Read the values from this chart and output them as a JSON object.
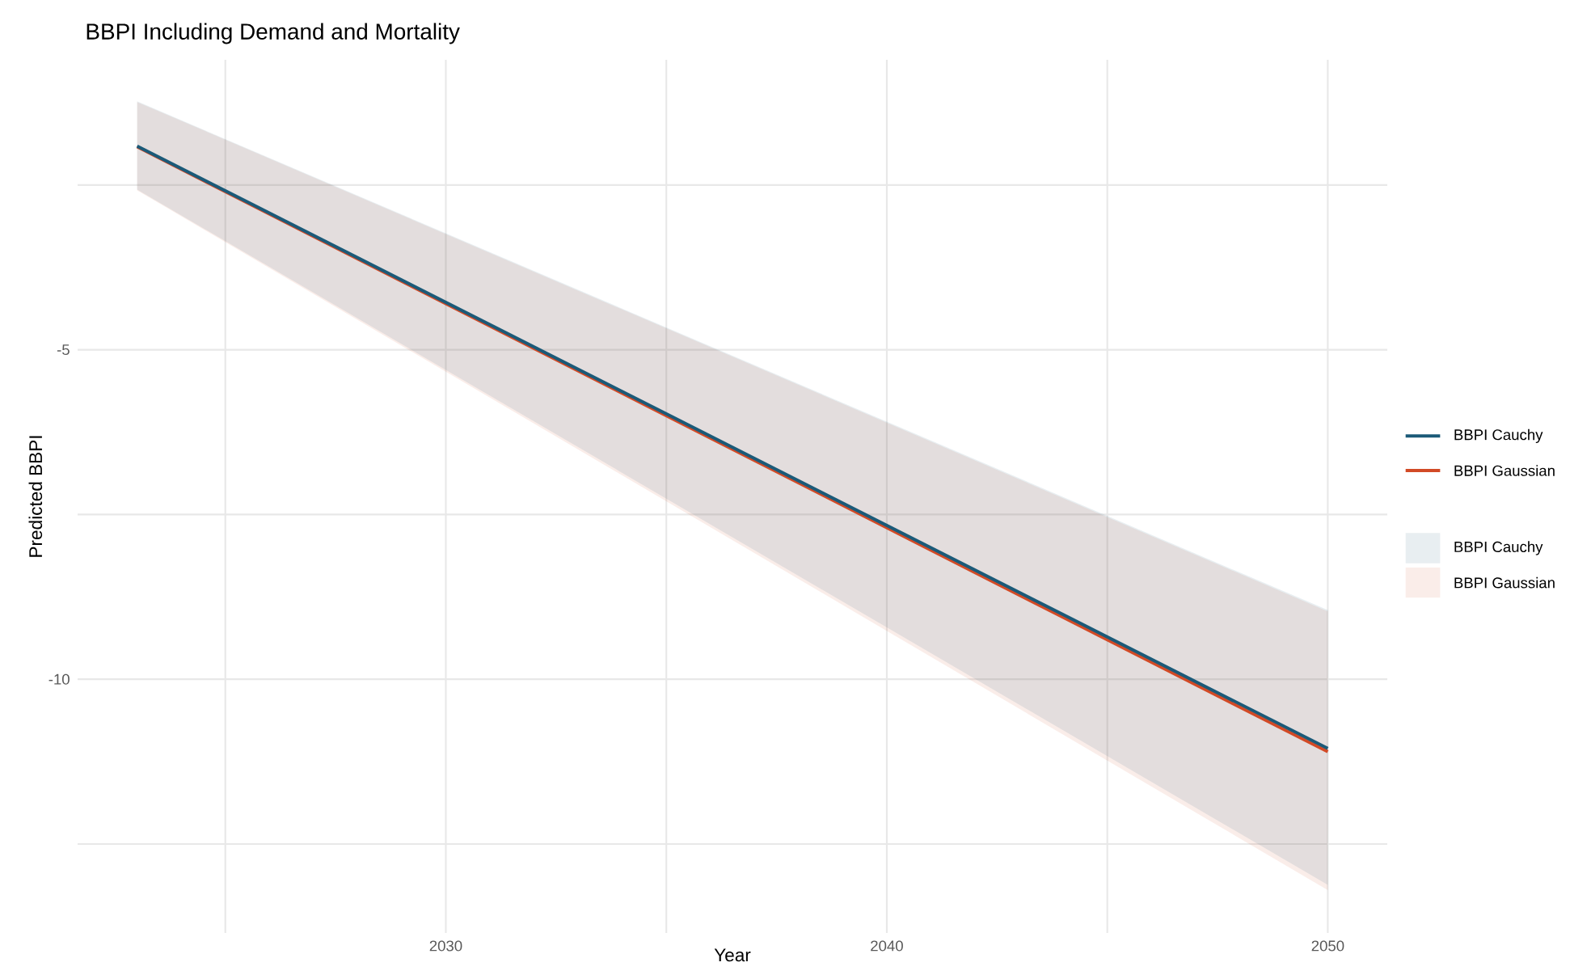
{
  "chart_data": {
    "type": "line",
    "title": "BBPI Including Demand and Mortality",
    "xlabel": "Year",
    "ylabel": "Predicted BBPI",
    "xlim": [
      2021.65,
      2051.35
    ],
    "ylim": [
      -13.85,
      -0.6
    ],
    "xticks": [
      {
        "value": 2025,
        "label": null
      },
      2030,
      {
        "value": 2035,
        "label": null
      },
      2040,
      {
        "value": 2045,
        "label": null
      },
      2050
    ],
    "yticks": [
      {
        "value": -12.5,
        "label": null
      },
      -10,
      {
        "value": -7.5,
        "label": null
      },
      -5,
      {
        "value": -2.5,
        "label": null
      }
    ],
    "x": [
      2023,
      2050
    ],
    "grid": true,
    "legend": "right",
    "line_style": "solid",
    "marker": "none",
    "series": [
      {
        "name": "BBPI Cauchy",
        "color": "#1b5a78",
        "values": [
          -1.91,
          -11.05
        ],
        "lower": [
          -2.57,
          -13.12
        ],
        "upper": [
          -1.23,
          -8.95
        ]
      },
      {
        "name": "BBPI Gaussian",
        "color": "#d24a26",
        "values": [
          -1.92,
          -11.1
        ],
        "lower": [
          -2.58,
          -13.2
        ],
        "upper": [
          -1.24,
          -8.97
        ]
      }
    ]
  }
}
